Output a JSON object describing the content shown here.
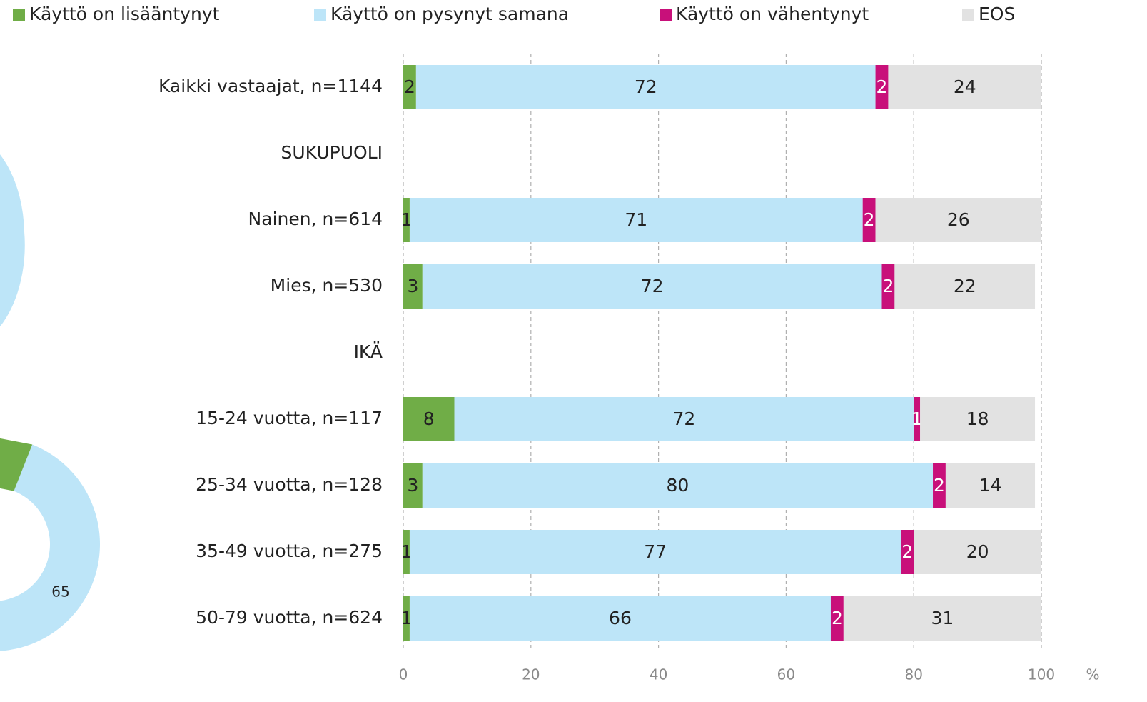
{
  "chart_data": [
    {
      "type": "stacked-barh",
      "categories": [
        "Kaikki vastaajat, n=1144",
        "SUKUPUOLI",
        "Nainen, n=614",
        "Mies, n=530",
        "IKÄ",
        "15-24 vuotta, n=117",
        "25-34 vuotta, n=128",
        "35-49 vuotta, n=275",
        "50-79 vuotta, n=624"
      ],
      "series": [
        {
          "name": "Käyttö on lisääntynyt",
          "color": "#70ad47",
          "label_color": "#222222",
          "values": [
            2,
            null,
            1,
            3,
            null,
            8,
            3,
            1,
            1
          ]
        },
        {
          "name": "Käyttö on pysynyt samana",
          "color": "#bde5f8",
          "label_color": "#222222",
          "values": [
            72,
            null,
            71,
            72,
            null,
            72,
            80,
            77,
            66
          ]
        },
        {
          "name": "Käyttö on vähentynyt",
          "color": "#c8107a",
          "label_color": "#ffffff",
          "values": [
            2,
            null,
            2,
            2,
            null,
            1,
            2,
            2,
            2
          ]
        },
        {
          "name": "EOS",
          "color": "#e2e2e2",
          "label_color": "#222222",
          "values": [
            24,
            null,
            26,
            22,
            null,
            18,
            14,
            20,
            31
          ]
        }
      ],
      "xlim": [
        0,
        100
      ],
      "xticks": [
        0,
        20,
        40,
        60,
        80,
        100
      ],
      "xlabel": "%",
      "grid": true,
      "legend": "top"
    },
    {
      "type": "donut",
      "values": [
        65
      ],
      "color": "#bde5f8"
    }
  ]
}
